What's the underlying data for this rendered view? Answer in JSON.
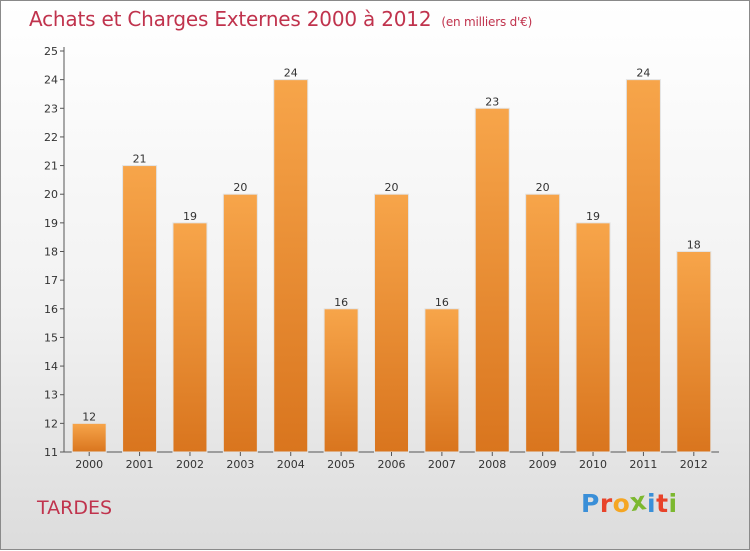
{
  "title": "Achats et Charges Externes 2000 à 2012",
  "subtitle": "(en milliers d'€)",
  "place": "TARDES",
  "logo": {
    "letters": [
      "P",
      "r",
      "o",
      "x",
      "i",
      "t",
      "i"
    ],
    "colors": [
      "#3a8fd8",
      "#e8432a",
      "#f5a623",
      "#7cb82f",
      "#3a8fd8",
      "#e8432a",
      "#7cb82f"
    ]
  },
  "colors": {
    "bar_top": "#f7a54a",
    "bar_bottom": "#d9751e",
    "title": "#c0334d"
  },
  "chart_data": {
    "type": "bar",
    "categories": [
      "2000",
      "2001",
      "2002",
      "2003",
      "2004",
      "2005",
      "2006",
      "2007",
      "2008",
      "2009",
      "2010",
      "2011",
      "2012"
    ],
    "values": [
      12,
      21,
      19,
      20,
      24,
      16,
      20,
      16,
      23,
      20,
      19,
      24,
      18
    ],
    "title": "Achats et Charges Externes 2000 à 2012",
    "xlabel": "",
    "ylabel": "",
    "ylim": [
      11,
      25
    ],
    "yticks": [
      11,
      12,
      13,
      14,
      15,
      16,
      17,
      18,
      19,
      20,
      21,
      22,
      23,
      24,
      25
    ],
    "grid": false,
    "data_labels": true
  }
}
